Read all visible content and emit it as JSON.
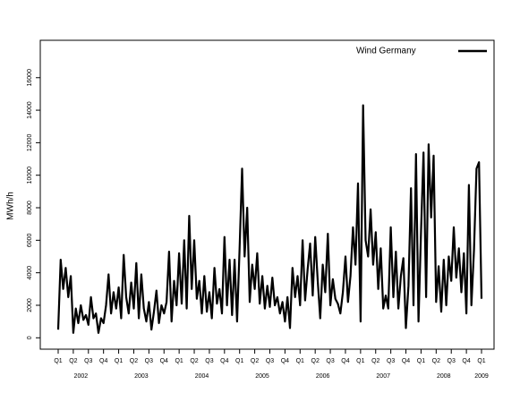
{
  "chart_data": {
    "type": "line",
    "y_axis_label": "MWh/h",
    "categories": [
      "Q1",
      null,
      null,
      null,
      null,
      null,
      "Q2",
      null,
      null,
      null,
      null,
      null,
      "Q3",
      null,
      null,
      null,
      null,
      null,
      "Q4",
      null,
      null,
      null,
      null,
      null,
      "Q1",
      null,
      null,
      null,
      null,
      null,
      "Q2",
      null,
      null,
      null,
      null,
      null,
      "Q3",
      null,
      null,
      null,
      null,
      null,
      "Q4",
      null,
      null,
      null,
      null,
      null,
      "Q1",
      null,
      null,
      null,
      null,
      null,
      "Q2",
      null,
      null,
      null,
      null,
      null,
      "Q3",
      null,
      null,
      null,
      null,
      null,
      "Q4",
      null,
      null,
      null,
      null,
      null,
      "Q1",
      null,
      null,
      null,
      null,
      null,
      "Q2",
      null,
      null,
      null,
      null,
      null,
      "Q3",
      null,
      null,
      null,
      null,
      null,
      "Q4",
      null,
      null,
      null,
      null,
      null,
      "Q1",
      null,
      null,
      null,
      null,
      null,
      "Q2",
      null,
      null,
      null,
      null,
      null,
      "Q3",
      null,
      null,
      null,
      null,
      null,
      "Q4",
      null,
      null,
      null,
      null,
      null,
      "Q1",
      null,
      null,
      null,
      null,
      null,
      "Q2",
      null,
      null,
      null,
      null,
      null,
      "Q3",
      null,
      null,
      null,
      null,
      null,
      "Q4",
      null,
      null,
      null,
      null,
      null,
      "Q1",
      null,
      null,
      null,
      null,
      null,
      "Q2",
      null,
      null,
      null,
      null,
      null,
      "Q3",
      null,
      null,
      null,
      null,
      null,
      "Q4",
      null,
      null,
      null,
      null,
      null,
      "Q1"
    ],
    "year_labels": [
      "2002",
      "2003",
      "2004",
      "2005",
      "2006",
      "2007",
      "2008",
      "2009"
    ],
    "series": [
      {
        "name": "Wind Germany",
        "color": "#000000",
        "values": [
          500,
          4800,
          3000,
          4300,
          2500,
          3800,
          300,
          1800,
          900,
          2000,
          1100,
          1400,
          800,
          2500,
          1200,
          1500,
          300,
          1200,
          900,
          2000,
          3900,
          1500,
          2800,
          1800,
          3100,
          1200,
          5100,
          2500,
          1500,
          3400,
          1800,
          4600,
          1200,
          3900,
          1800,
          1000,
          2200,
          500,
          1600,
          2900,
          900,
          2000,
          1500,
          2200,
          5300,
          1000,
          3500,
          2000,
          5200,
          2100,
          6000,
          1800,
          7500,
          3000,
          6000,
          2400,
          3500,
          1500,
          3800,
          1600,
          2800,
          1200,
          4300,
          2100,
          3000,
          1500,
          6200,
          2000,
          4800,
          1400,
          4800,
          1000,
          5500,
          10400,
          5000,
          8000,
          2200,
          4500,
          3000,
          5200,
          2100,
          3800,
          1800,
          3200,
          1900,
          3700,
          2000,
          2500,
          1500,
          2200,
          1000,
          2500,
          600,
          4300,
          2500,
          3800,
          2000,
          6000,
          2300,
          4200,
          5800,
          2600,
          6200,
          3500,
          1200,
          4500,
          2800,
          6400,
          2000,
          3600,
          2400,
          2100,
          1500,
          2800,
          5000,
          2200,
          3800,
          6800,
          4500,
          9500,
          1000,
          14300,
          6000,
          5000,
          7900,
          4500,
          6500,
          3000,
          5500,
          1800,
          2600,
          1800,
          6800,
          2500,
          5300,
          1800,
          3800,
          4900,
          600,
          3200,
          9200,
          2000,
          11300,
          1000,
          6500,
          11400,
          2500,
          11900,
          7400,
          11200,
          2200,
          4400,
          1600,
          4800,
          2000,
          5000,
          3500,
          6800,
          3700,
          5500,
          2800,
          5200,
          1500,
          9400,
          2000,
          5400,
          10400,
          10800,
          2400
        ]
      }
    ],
    "ylim": [
      -700,
      18300
    ],
    "yticks": [
      0,
      2000,
      4000,
      6000,
      8000,
      10000,
      12000,
      14000,
      16000
    ],
    "legend": "top-right"
  }
}
